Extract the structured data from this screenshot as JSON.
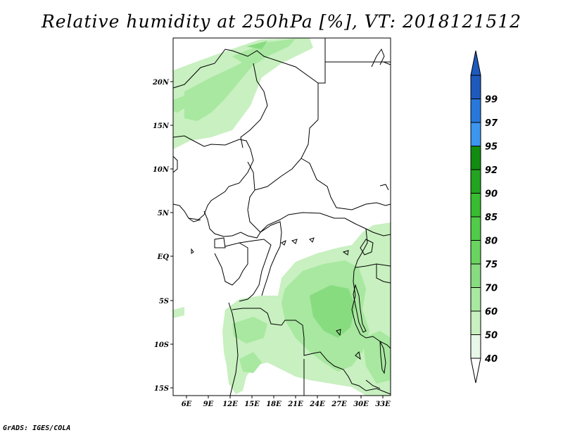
{
  "title": "Relative humidity at 250hPa [%], VT: 2018121512",
  "footer": "GrADS: IGES/COLA",
  "map": {
    "lon_range": [
      3.5,
      33.5
    ],
    "lat_range": [
      -16.5,
      24.5
    ],
    "lon_ticks": [
      "6E",
      "9E",
      "12E",
      "15E",
      "18E",
      "21E",
      "24E",
      "27E",
      "30E",
      "33E"
    ],
    "lat_ticks": [
      "20N",
      "15N",
      "10N",
      "5N",
      "EQ",
      "5S",
      "10S",
      "15S"
    ]
  },
  "colorbar": {
    "levels": [
      "40",
      "50",
      "60",
      "70",
      "75",
      "80",
      "85",
      "90",
      "92",
      "95",
      "97",
      "99"
    ],
    "colors": [
      "#e8f8e8",
      "#c8f0c0",
      "#a8e8a0",
      "#88dc80",
      "#6ad460",
      "#50cc48",
      "#38bc30",
      "#22a420",
      "#118c10",
      "#3c96f0",
      "#2878dc",
      "#1e5abe"
    ],
    "arrow_low_color": "#ffffff",
    "arrow_high_color": "#1e5abe"
  }
}
